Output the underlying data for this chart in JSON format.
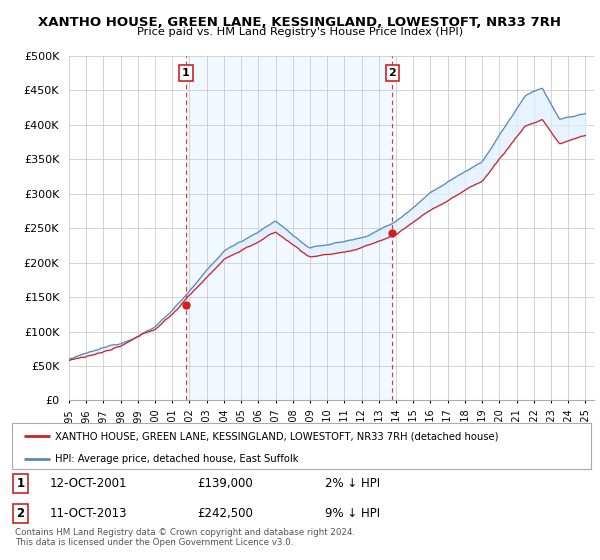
{
  "title": "XANTHO HOUSE, GREEN LANE, KESSINGLAND, LOWESTOFT, NR33 7RH",
  "subtitle": "Price paid vs. HM Land Registry's House Price Index (HPI)",
  "ylabel_ticks": [
    "£0",
    "£50K",
    "£100K",
    "£150K",
    "£200K",
    "£250K",
    "£300K",
    "£350K",
    "£400K",
    "£450K",
    "£500K"
  ],
  "ytick_values": [
    0,
    50000,
    100000,
    150000,
    200000,
    250000,
    300000,
    350000,
    400000,
    450000,
    500000
  ],
  "xlim": [
    1995.0,
    2025.5
  ],
  "ylim": [
    0,
    500000
  ],
  "sale1_year": 2001.79,
  "sale1_price": 139000,
  "sale2_year": 2013.79,
  "sale2_price": 242500,
  "sale1_date": "12-OCT-2001",
  "sale1_amount": "£139,000",
  "sale1_hpi_diff": "2% ↓ HPI",
  "sale2_date": "11-OCT-2013",
  "sale2_amount": "£242,500",
  "sale2_hpi_diff": "9% ↓ HPI",
  "hpi_line_color": "#5588bb",
  "price_line_color": "#cc2222",
  "fill_color": "#ddeeff",
  "dashed_line_color": "#dd3333",
  "legend_house_label": "XANTHO HOUSE, GREEN LANE, KESSINGLAND, LOWESTOFT, NR33 7RH (detached house)",
  "legend_hpi_label": "HPI: Average price, detached house, East Suffolk",
  "footer_text": "Contains HM Land Registry data © Crown copyright and database right 2024.\nThis data is licensed under the Open Government Licence v3.0.",
  "background_color": "#ffffff",
  "grid_color": "#cccccc",
  "between_fill_color": "#ddeeff"
}
